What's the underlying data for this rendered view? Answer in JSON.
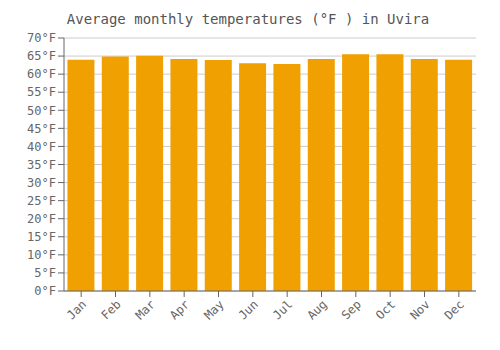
{
  "chart_data": {
    "type": "bar",
    "title": "Average monthly temperatures (°F ) in Uvira",
    "categories": [
      "Jan",
      "Feb",
      "Mar",
      "Apr",
      "May",
      "Jun",
      "Jul",
      "Aug",
      "Sep",
      "Oct",
      "Nov",
      "Dec"
    ],
    "values": [
      64.0,
      64.9,
      65.1,
      64.2,
      63.9,
      63.0,
      62.8,
      64.2,
      65.5,
      65.5,
      64.2,
      64.0
    ],
    "color": "#F0A000",
    "ylim": [
      0,
      70
    ],
    "yticks": [
      {
        "value": 0,
        "label": "0°F"
      },
      {
        "value": 5,
        "label": "5°F"
      },
      {
        "value": 10,
        "label": "10°F"
      },
      {
        "value": 15,
        "label": "15°F"
      },
      {
        "value": 20,
        "label": "20°F"
      },
      {
        "value": 25,
        "label": "25°F"
      },
      {
        "value": 30,
        "label": "30°F"
      },
      {
        "value": 35,
        "label": "35°F"
      },
      {
        "value": 40,
        "label": "40°F"
      },
      {
        "value": 45,
        "label": "45°F"
      },
      {
        "value": 50,
        "label": "50°F"
      },
      {
        "value": 55,
        "label": "55°F"
      },
      {
        "value": 60,
        "label": "60°F"
      },
      {
        "value": 65,
        "label": "65°F"
      },
      {
        "value": 70,
        "label": "70°F"
      }
    ],
    "grid": true
  }
}
